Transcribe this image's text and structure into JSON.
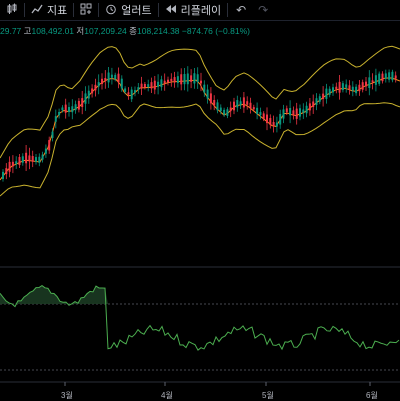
{
  "toolbar": {
    "indicators_label": "지표",
    "alert_label": "얼러트",
    "replay_label": "리플레이"
  },
  "ohlc": {
    "first_value": "29.77",
    "high_label": "고",
    "high_value": "108,492.01",
    "low_label": "저",
    "low_value": "107,209.24",
    "close_label": "종",
    "close_value": "108,214.38",
    "change_text": "−874.76 (−0.81%)"
  },
  "x_axis": {
    "labels": [
      "3월",
      "4월",
      "5월",
      "6월"
    ]
  },
  "colors": {
    "up": "#089981",
    "down": "#f23645",
    "band": "#c9b22e",
    "basis": "#ff8c1a",
    "osc": "#4caf50",
    "osc_fill": "#1b3a22"
  }
}
